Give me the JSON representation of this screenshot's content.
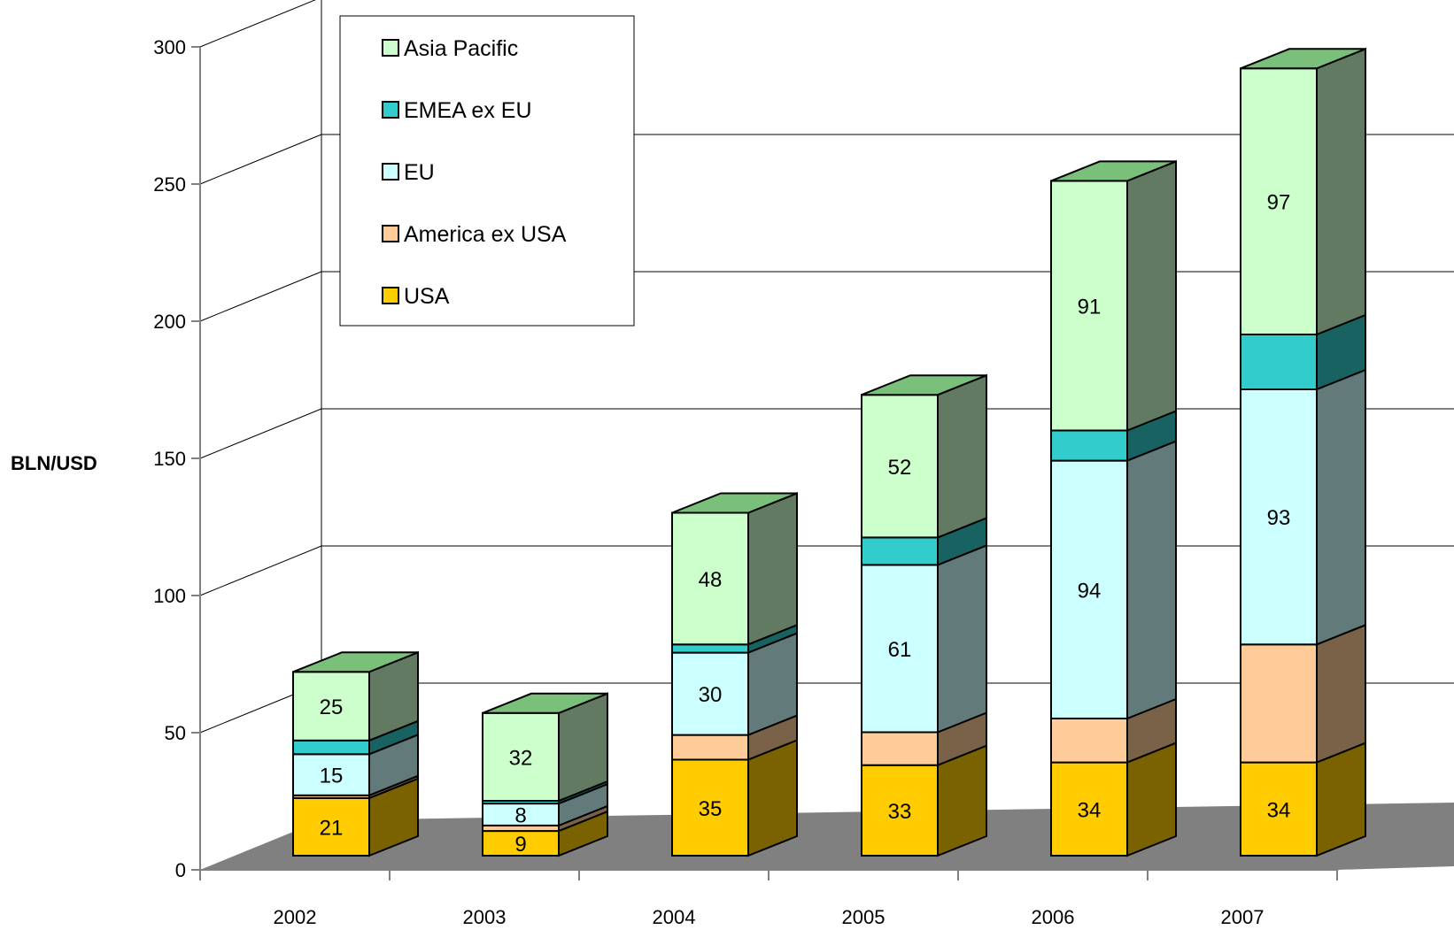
{
  "chart_data": {
    "type": "bar",
    "stacked": true,
    "three_d": true,
    "categories": [
      "2002",
      "2003",
      "2004",
      "2005",
      "2006",
      "2007"
    ],
    "series": [
      {
        "name": "USA",
        "color": "#FFCC00",
        "values": [
          21,
          9,
          35,
          33,
          34,
          34
        ],
        "labels": [
          "21",
          "9",
          "35",
          "33",
          "34",
          "34"
        ]
      },
      {
        "name": "America ex USA",
        "color": "#FFCC99",
        "values": [
          1,
          2,
          9,
          12,
          16,
          43
        ],
        "labels": [
          "",
          "",
          "",
          "",
          "",
          ""
        ]
      },
      {
        "name": "EU",
        "color": "#CCFFFF",
        "values": [
          15,
          8,
          30,
          61,
          94,
          93
        ],
        "labels": [
          "15",
          "8",
          "30",
          "61",
          "94",
          "93"
        ]
      },
      {
        "name": "EMEA ex EU",
        "color": "#33CCCC",
        "values": [
          5,
          1,
          3,
          10,
          11,
          20
        ],
        "labels": [
          "",
          "",
          "",
          "",
          "",
          ""
        ]
      },
      {
        "name": "Asia Pacific",
        "color": "#CCFFCC",
        "values": [
          25,
          32,
          48,
          52,
          91,
          97
        ],
        "labels": [
          "25",
          "32",
          "48",
          "52",
          "91",
          "97"
        ]
      }
    ],
    "legend_order": [
      "Asia Pacific",
      "EMEA ex EU",
      "EU",
      "America ex USA",
      "USA"
    ],
    "ylabel": "BLN/USD",
    "xlabel": "",
    "ylim": [
      0,
      300
    ],
    "yticks": [
      "0",
      "50",
      "100",
      "150",
      "200",
      "250",
      "300"
    ],
    "grid": true,
    "legend_position": "top-left"
  }
}
